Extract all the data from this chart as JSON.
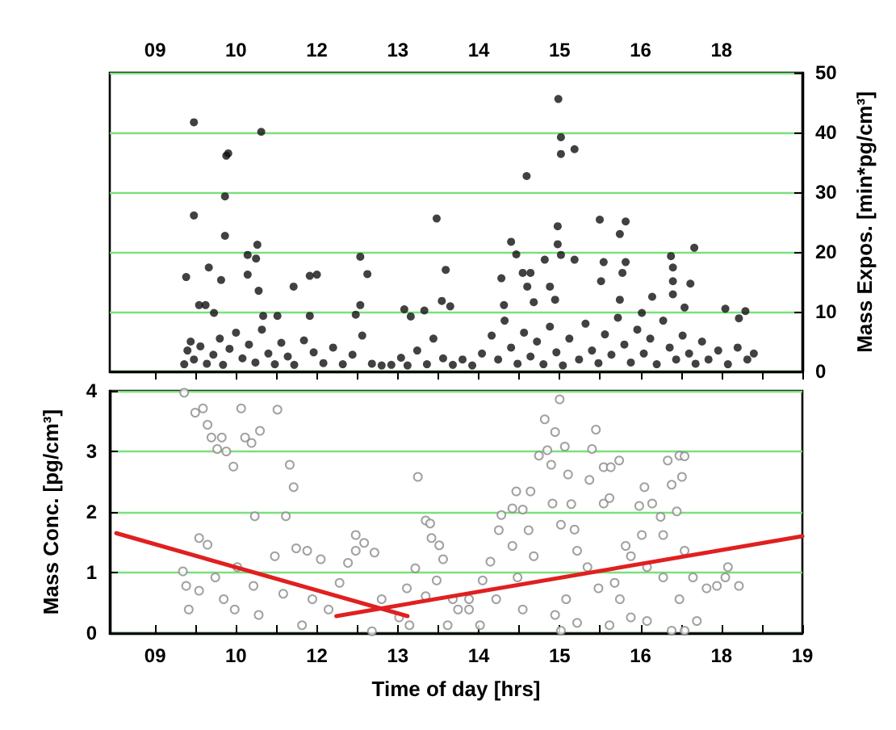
{
  "chart_data": [
    {
      "type": "scatter",
      "ylabel": "Mass Expos. [min*pg/cm³]",
      "xlim": [
        8.3,
        19
      ],
      "xticks": [
        {
          "value": 9,
          "label": "09"
        },
        {
          "value": 9.625,
          "label": null
        },
        {
          "value": 10.25,
          "label": "10"
        },
        {
          "value": 10.875,
          "label": null
        },
        {
          "value": 11.5,
          "label": "12"
        },
        {
          "value": 12.125,
          "label": null
        },
        {
          "value": 12.75,
          "label": "13"
        },
        {
          "value": 13.375,
          "label": null
        },
        {
          "value": 14,
          "label": "14"
        },
        {
          "value": 14.625,
          "label": null
        },
        {
          "value": 15.25,
          "label": "15"
        },
        {
          "value": 15.875,
          "label": null
        },
        {
          "value": 16.5,
          "label": "16"
        },
        {
          "value": 17.125,
          "label": null
        },
        {
          "value": 17.75,
          "label": "18"
        },
        {
          "value": 18.375,
          "label": null
        },
        {
          "value": 19,
          "label": null
        }
      ],
      "ylim": [
        0,
        50
      ],
      "yticks": [
        0,
        10,
        20,
        30,
        40,
        50
      ],
      "grid": "y",
      "marker": "circle",
      "series": [
        {
          "color": "#111111",
          "x": [
            9.6,
            9.6,
            9.48,
            10.1,
            10.13,
            10.08,
            10.08,
            10.64,
            9.83,
            10.02,
            10.58,
            10.43,
            10.56,
            10.43,
            10.6,
            9.68,
            9.78,
            9.91,
            10.67,
            10.89,
            11.14,
            11.39,
            11.5,
            11.39,
            12.17,
            12.28,
            12.17,
            12.1,
            13.35,
            13.49,
            13.43,
            13.56,
            12.85,
            13.16,
            12.95,
            14.74,
            15.23,
            15.27,
            15.27,
            15.48,
            15.22,
            15.22,
            14.5,
            14.58,
            15.02,
            15.27,
            15.48,
            15.87,
            16.27,
            16.18,
            15.93,
            16.27,
            16.22,
            14.35,
            14.68,
            14.8,
            14.75,
            15.1,
            15.89,
            16.97,
            17.0,
            17.0,
            17.33,
            17.27,
            16.68,
            17.0,
            17.81,
            18.12,
            18.02,
            14.39,
            14.85,
            15.18,
            16.18,
            16.52,
            17.18,
            9.45,
            9.5,
            9.55,
            9.6,
            9.7,
            9.8,
            9.9,
            10.0,
            10.05,
            10.15,
            10.25,
            10.35,
            10.45,
            10.55,
            10.65,
            10.75,
            10.85,
            10.95,
            11.05,
            11.15,
            11.3,
            11.45,
            11.6,
            11.75,
            11.9,
            12.05,
            12.2,
            12.35,
            12.5,
            12.65,
            12.8,
            12.9,
            13.05,
            13.2,
            13.3,
            13.45,
            13.6,
            13.75,
            13.9,
            14.05,
            14.2,
            14.3,
            14.4,
            14.5,
            14.6,
            14.7,
            14.8,
            14.9,
            15.0,
            15.1,
            15.2,
            15.3,
            15.4,
            15.55,
            15.65,
            15.75,
            15.85,
            15.95,
            16.05,
            16.15,
            16.25,
            16.35,
            16.45,
            16.55,
            16.65,
            16.75,
            16.85,
            16.95,
            17.05,
            17.15,
            17.25,
            17.35,
            17.45,
            17.55,
            17.7,
            17.85,
            18.0,
            18.15,
            18.25
          ],
          "values": [
            41.7,
            26.1,
            15.8,
            36.1,
            36.5,
            29.3,
            22.7,
            40.1,
            17.4,
            15.3,
            21.2,
            19.5,
            18.9,
            16.2,
            13.5,
            11.1,
            11.1,
            9.8,
            9.3,
            9.3,
            14.2,
            16.0,
            16.2,
            9.3,
            19.2,
            16.3,
            11.1,
            9.5,
            25.6,
            17.0,
            11.8,
            10.9,
            10.4,
            10.2,
            9.2,
            32.7,
            45.6,
            39.2,
            36.4,
            37.2,
            24.3,
            21.3,
            21.7,
            19.6,
            18.7,
            19.5,
            18.7,
            25.4,
            25.1,
            23.0,
            18.3,
            18.3,
            16.5,
            15.6,
            16.5,
            16.5,
            14.2,
            14.2,
            15.1,
            19.3,
            17.4,
            15.1,
            20.7,
            14.7,
            12.5,
            12.9,
            10.5,
            10.1,
            8.9,
            11.1,
            11.6,
            12.0,
            12.0,
            9.8,
            10.7,
            1.2,
            3.5,
            5.0,
            2.0,
            4.2,
            1.3,
            2.8,
            5.5,
            1.1,
            3.8,
            6.5,
            2.2,
            4.5,
            1.5,
            7.0,
            3.0,
            1.2,
            4.8,
            2.5,
            1.1,
            5.2,
            3.2,
            1.4,
            4.0,
            1.2,
            2.8,
            6.0,
            1.3,
            1.0,
            1.1,
            2.3,
            1.0,
            3.5,
            1.2,
            5.5,
            2.2,
            1.1,
            2.0,
            1.0,
            3.0,
            6.0,
            2.0,
            8.5,
            4.0,
            1.3,
            6.5,
            2.5,
            5.0,
            1.2,
            7.5,
            3.2,
            1.0,
            5.5,
            2.0,
            8.0,
            3.5,
            1.4,
            6.2,
            2.8,
            9.0,
            4.5,
            1.5,
            7.0,
            3.0,
            5.5,
            1.2,
            8.5,
            4.0,
            2.0,
            6.0,
            3.0,
            1.3,
            5.0,
            2.0,
            3.5,
            1.2,
            4.0,
            2.0,
            3.0
          ]
        }
      ]
    },
    {
      "type": "scatter",
      "xlabel": "Time of day [hrs]",
      "ylabel": "Mass Conc. [pg/cm³]",
      "xlim": [
        8.3,
        19
      ],
      "xticks": [
        {
          "value": 9,
          "label": "09"
        },
        {
          "value": 9.625,
          "label": null
        },
        {
          "value": 10.25,
          "label": "10"
        },
        {
          "value": 10.875,
          "label": null
        },
        {
          "value": 11.5,
          "label": "12"
        },
        {
          "value": 12.125,
          "label": null
        },
        {
          "value": 12.75,
          "label": "13"
        },
        {
          "value": 13.375,
          "label": null
        },
        {
          "value": 14,
          "label": "14"
        },
        {
          "value": 14.625,
          "label": null
        },
        {
          "value": 15.25,
          "label": "15"
        },
        {
          "value": 15.875,
          "label": null
        },
        {
          "value": 16.5,
          "label": "16"
        },
        {
          "value": 17.125,
          "label": null
        },
        {
          "value": 17.75,
          "label": "18"
        },
        {
          "value": 18.375,
          "label": null
        },
        {
          "value": 19,
          "label": "19"
        }
      ],
      "ylim": [
        0,
        4
      ],
      "yticks": [
        0,
        1,
        2,
        3,
        4
      ],
      "grid": "y",
      "series": [
        {
          "color": "#8a8a8a",
          "marker": "circle",
          "x": [
            9.45,
            9.62,
            9.74,
            9.81,
            9.87,
            10.03,
            9.96,
            10.1,
            10.33,
            10.39,
            10.49,
            10.62,
            10.89,
            10.21,
            11.08,
            11.14,
            10.54,
            11.02,
            9.68,
            9.81,
            9.43,
            9.48,
            9.52,
            9.68,
            9.93,
            10.06,
            10.23,
            10.27,
            10.52,
            10.6,
            10.85,
            10.98,
            11.18,
            11.35,
            11.56,
            11.27,
            11.43,
            11.68,
            11.85,
            12.1,
            12.23,
            12.39,
            12.1,
            11.98,
            12.5,
            12.35,
            12.77,
            12.89,
            13.06,
            13.18,
            13.25,
            13.27,
            13.39,
            13.45,
            13.35,
            13.02,
            13.18,
            13.52,
            13.68,
            13.85,
            14.06,
            14.18,
            14.31,
            14.35,
            14.58,
            14.8,
            14.52,
            14.68,
            14.77,
            14.52,
            14.85,
            14.6,
            14.27,
            14.68,
            15.02,
            15.25,
            15.18,
            14.93,
            15.06,
            15.33,
            15.12,
            15.38,
            15.14,
            15.43,
            15.27,
            15.48,
            15.81,
            15.75,
            15.71,
            15.93,
            16.04,
            16.17,
            15.93,
            16.02,
            15.52,
            15.68,
            15.85,
            15.35,
            15.18,
            15.52,
            15.27,
            16.02,
            16.35,
            16.6,
            16.98,
            17.18,
            16.92,
            17.1,
            17.18,
            16.98,
            17.14,
            16.56,
            16.68,
            16.81,
            17.06,
            16.48,
            16.52,
            16.85,
            16.27,
            16.35,
            16.6,
            16.85,
            17.18,
            17.31,
            17.1,
            17.37,
            17.52,
            17.68,
            17.85,
            18.02,
            17.81,
            16.1,
            16.18,
            13.85,
            14.02,
            13.6,
            12.93
          ],
          "values": [
            3.97,
            3.64,
            3.71,
            3.44,
            3.23,
            3.23,
            3.04,
            3.0,
            3.71,
            3.23,
            3.14,
            3.34,
            3.69,
            2.75,
            2.78,
            2.41,
            1.93,
            1.93,
            1.57,
            1.46,
            1.02,
            0.78,
            0.39,
            0.7,
            0.92,
            0.56,
            0.39,
            1.09,
            0.78,
            0.3,
            1.27,
            0.65,
            1.4,
            1.36,
            1.22,
            0.13,
            0.56,
            0.39,
            0.83,
            1.62,
            1.49,
            1.33,
            1.36,
            1.16,
            0.56,
            0.03,
            0.26,
            0.74,
            2.58,
            1.86,
            1.81,
            1.57,
            1.45,
            1.22,
            0.87,
            1.07,
            0.61,
            0.13,
            0.39,
            0.56,
            0.87,
            1.18,
            1.7,
            1.95,
            2.34,
            2.34,
            2.06,
            2.04,
            1.7,
            1.44,
            1.27,
            0.92,
            0.56,
            0.39,
            3.53,
            3.86,
            3.32,
            2.93,
            3.02,
            3.08,
            2.78,
            2.62,
            2.14,
            2.13,
            1.79,
            1.71,
            3.36,
            3.04,
            2.53,
            2.74,
            2.74,
            2.85,
            2.14,
            2.23,
            1.36,
            1.09,
            0.74,
            0.56,
            0.3,
            0.17,
            0.04,
            0.13,
            0.26,
            0.2,
            0.04,
            0.04,
            2.85,
            2.93,
            2.92,
            2.45,
            2.58,
            2.41,
            2.14,
            1.92,
            2.01,
            2.1,
            1.62,
            1.62,
            1.44,
            1.27,
            1.09,
            0.92,
            1.36,
            0.92,
            0.56,
            0.2,
            0.74,
            0.78,
            1.09,
            0.78,
            0.92,
            0.83,
            0.56,
            0.39,
            0.13,
            0.56,
            0.13
          ]
        },
        {
          "type": "line",
          "color": "#e02020",
          "marker": "none",
          "x": [
            8.4,
            12.9
          ],
          "values": [
            1.65,
            0.28
          ]
        },
        {
          "type": "line",
          "color": "#e02020",
          "marker": "none",
          "x": [
            11.8,
            19
          ],
          "values": [
            0.28,
            1.6
          ]
        }
      ]
    }
  ]
}
